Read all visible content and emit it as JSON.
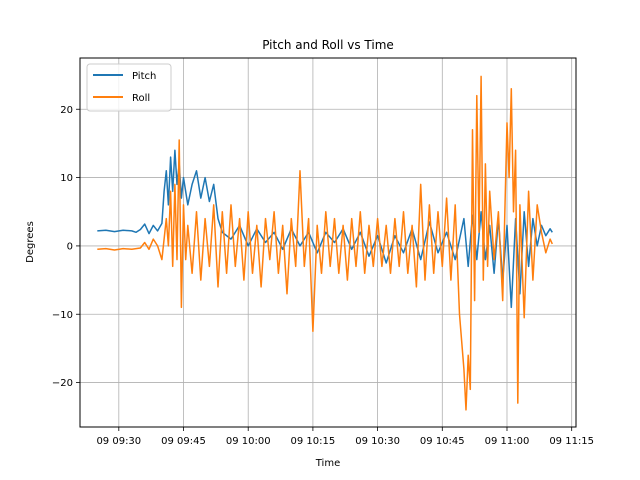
{
  "chart_data": {
    "type": "line",
    "title": "Pitch and Roll vs Time",
    "xlabel": "Time",
    "ylabel": "Degrees",
    "grid": true,
    "legend_position": "top-left",
    "xlim": [
      "09:21",
      "11:16"
    ],
    "ylim": [
      -26.5,
      27.5
    ],
    "x_ticks": [
      "09:30",
      "09:45",
      "10:00",
      "10:15",
      "10:30",
      "10:45",
      "11:00",
      "11:15"
    ],
    "x_tick_labels": [
      "09 09:30",
      "09 09:45",
      "09 10:00",
      "09 10:15",
      "09 10:30",
      "09 10:45",
      "09 11:00",
      "09 11:15"
    ],
    "y_ticks": [
      -20,
      -10,
      0,
      10,
      20
    ],
    "y_tick_labels": [
      "−20",
      "−10",
      "0",
      "10",
      "20"
    ],
    "series": [
      {
        "name": "Pitch",
        "color": "#1f77b4",
        "points": [
          [
            "09:25",
            2.2
          ],
          [
            "09:27",
            2.3
          ],
          [
            "09:29",
            2.1
          ],
          [
            "09:31",
            2.3
          ],
          [
            "09:33",
            2.2
          ],
          [
            "09:34",
            2.0
          ],
          [
            "09:35",
            2.4
          ],
          [
            "09:36",
            3.2
          ],
          [
            "09:37",
            1.8
          ],
          [
            "09:38",
            3.0
          ],
          [
            "09:39",
            2.2
          ],
          [
            "09:40",
            3.3
          ],
          [
            "09:40.5",
            8.0
          ],
          [
            "09:41",
            11.0
          ],
          [
            "09:41.5",
            6.0
          ],
          [
            "09:42",
            13.0
          ],
          [
            "09:42.5",
            8.0
          ],
          [
            "09:43",
            14.0
          ],
          [
            "09:43.5",
            9.0
          ],
          [
            "09:44",
            12.0
          ],
          [
            "09:44.5",
            7.0
          ],
          [
            "09:45",
            10.0
          ],
          [
            "09:46",
            6.0
          ],
          [
            "09:47",
            9.0
          ],
          [
            "09:48",
            11.0
          ],
          [
            "09:49",
            7.0
          ],
          [
            "09:50",
            10.0
          ],
          [
            "09:51",
            6.5
          ],
          [
            "09:52",
            9.0
          ],
          [
            "09:53",
            4.0
          ],
          [
            "09:54",
            2.0
          ],
          [
            "09:56",
            1.0
          ],
          [
            "09:58",
            3.0
          ],
          [
            "10:00",
            0.0
          ],
          [
            "10:02",
            2.5
          ],
          [
            "10:04",
            0.5
          ],
          [
            "10:06",
            2.0
          ],
          [
            "10:08",
            -0.5
          ],
          [
            "10:10",
            2.5
          ],
          [
            "10:12",
            0.0
          ],
          [
            "10:14",
            2.0
          ],
          [
            "10:16",
            -1.0
          ],
          [
            "10:18",
            2.0
          ],
          [
            "10:20",
            0.5
          ],
          [
            "10:22",
            2.5
          ],
          [
            "10:24",
            -0.5
          ],
          [
            "10:26",
            2.0
          ],
          [
            "10:28",
            -1.5
          ],
          [
            "10:30",
            1.5
          ],
          [
            "10:32",
            -2.5
          ],
          [
            "10:34",
            1.5
          ],
          [
            "10:36",
            -1.0
          ],
          [
            "10:38",
            2.5
          ],
          [
            "10:40",
            -2.0
          ],
          [
            "10:42",
            3.5
          ],
          [
            "10:44",
            -1.0
          ],
          [
            "10:46",
            2.0
          ],
          [
            "10:48",
            -2.0
          ],
          [
            "10:50",
            4.0
          ],
          [
            "10:51",
            -3.0
          ],
          [
            "10:52",
            4.5
          ],
          [
            "10:53",
            -2.0
          ],
          [
            "10:54",
            5.0
          ],
          [
            "10:55",
            -2.0
          ],
          [
            "10:56",
            3.0
          ],
          [
            "10:57",
            -4.0
          ],
          [
            "10:58",
            4.0
          ],
          [
            "10:59",
            -5.0
          ],
          [
            "11:00",
            3.0
          ],
          [
            "11:01",
            -9.0
          ],
          [
            "11:02",
            4.0
          ],
          [
            "11:03",
            -7.0
          ],
          [
            "11:04",
            5.0
          ],
          [
            "11:05",
            -3.0
          ],
          [
            "11:06",
            4.0
          ],
          [
            "11:07",
            0.0
          ],
          [
            "11:08",
            3.0
          ],
          [
            "11:09",
            1.5
          ],
          [
            "11:10",
            2.5
          ],
          [
            "11:10.5",
            2.0
          ]
        ]
      },
      {
        "name": "Roll",
        "color": "#ff7f0e",
        "points": [
          [
            "09:25",
            -0.5
          ],
          [
            "09:27",
            -0.4
          ],
          [
            "09:29",
            -0.6
          ],
          [
            "09:31",
            -0.4
          ],
          [
            "09:33",
            -0.5
          ],
          [
            "09:35",
            -0.3
          ],
          [
            "09:36",
            0.5
          ],
          [
            "09:37",
            -0.5
          ],
          [
            "09:38",
            1.0
          ],
          [
            "09:39",
            0.0
          ],
          [
            "09:40",
            -2.0
          ],
          [
            "09:41",
            4.0
          ],
          [
            "09:41.5",
            0.0
          ],
          [
            "09:42",
            8.0
          ],
          [
            "09:42.5",
            -3.0
          ],
          [
            "09:43",
            9.0
          ],
          [
            "09:43.5",
            -2.0
          ],
          [
            "09:44",
            15.5
          ],
          [
            "09:44.5",
            -9.0
          ],
          [
            "09:45",
            6.0
          ],
          [
            "09:45.5",
            -2.0
          ],
          [
            "09:46",
            3.0
          ],
          [
            "09:47",
            -4.0
          ],
          [
            "09:48",
            5.0
          ],
          [
            "09:49",
            -5.0
          ],
          [
            "09:50",
            4.0
          ],
          [
            "09:51",
            -3.0
          ],
          [
            "09:52",
            6.0
          ],
          [
            "09:53",
            -6.0
          ],
          [
            "09:54",
            5.0
          ],
          [
            "09:55",
            -4.0
          ],
          [
            "09:56",
            6.0
          ],
          [
            "09:57",
            -3.0
          ],
          [
            "09:58",
            4.0
          ],
          [
            "09:59",
            -5.0
          ],
          [
            "10:00",
            5.0
          ],
          [
            "10:01",
            -4.0
          ],
          [
            "10:02",
            3.0
          ],
          [
            "10:03",
            -6.0
          ],
          [
            "10:04",
            4.0
          ],
          [
            "10:05",
            -2.0
          ],
          [
            "10:06",
            5.0
          ],
          [
            "10:07",
            -4.0
          ],
          [
            "10:08",
            3.0
          ],
          [
            "10:09",
            -7.0
          ],
          [
            "10:10",
            4.0
          ],
          [
            "10:11",
            -3.0
          ],
          [
            "10:12",
            11.0
          ],
          [
            "10:13",
            -3.0
          ],
          [
            "10:14",
            4.0
          ],
          [
            "10:15",
            -12.5
          ],
          [
            "10:16",
            3.0
          ],
          [
            "10:17",
            -4.0
          ],
          [
            "10:18",
            5.0
          ],
          [
            "10:19",
            -3.0
          ],
          [
            "10:20",
            4.0
          ],
          [
            "10:21",
            -4.0
          ],
          [
            "10:22",
            3.0
          ],
          [
            "10:23",
            -5.0
          ],
          [
            "10:24",
            4.0
          ],
          [
            "10:25",
            -3.0
          ],
          [
            "10:26",
            5.0
          ],
          [
            "10:27",
            -4.0
          ],
          [
            "10:28",
            3.0
          ],
          [
            "10:29",
            -3.0
          ],
          [
            "10:30",
            4.0
          ],
          [
            "10:31",
            -3.0
          ],
          [
            "10:32",
            3.0
          ],
          [
            "10:33",
            -4.0
          ],
          [
            "10:34",
            4.0
          ],
          [
            "10:35",
            -3.0
          ],
          [
            "10:36",
            5.0
          ],
          [
            "10:37",
            -4.0
          ],
          [
            "10:38",
            3.0
          ],
          [
            "10:39",
            -6.0
          ],
          [
            "10:40",
            9.0
          ],
          [
            "10:41",
            -5.0
          ],
          [
            "10:42",
            6.0
          ],
          [
            "10:43",
            -4.0
          ],
          [
            "10:44",
            5.0
          ],
          [
            "10:45",
            -3.0
          ],
          [
            "10:46",
            7.0
          ],
          [
            "10:47",
            -5.0
          ],
          [
            "10:48",
            6.0
          ],
          [
            "10:49",
            -10.0
          ],
          [
            "10:50",
            -18.0
          ],
          [
            "10:50.5",
            -24.0
          ],
          [
            "10:51",
            -16.0
          ],
          [
            "10:51.5",
            -21.0
          ],
          [
            "10:52",
            17.0
          ],
          [
            "10:52.5",
            -8.0
          ],
          [
            "10:53",
            22.0
          ],
          [
            "10:53.5",
            2.0
          ],
          [
            "10:54",
            24.8
          ],
          [
            "10:54.5",
            -5.0
          ],
          [
            "10:55",
            12.0
          ],
          [
            "10:55.5",
            -3.0
          ],
          [
            "10:56",
            8.0
          ],
          [
            "10:57",
            -2.0
          ],
          [
            "10:58",
            5.0
          ],
          [
            "10:59",
            -8.0
          ],
          [
            "11:00",
            18.0
          ],
          [
            "11:00.5",
            10.0
          ],
          [
            "11:01",
            23.0
          ],
          [
            "11:01.5",
            5.0
          ],
          [
            "11:02",
            14.0
          ],
          [
            "11:02.5",
            -23.0
          ],
          [
            "11:03",
            6.0
          ],
          [
            "11:04",
            -10.5
          ],
          [
            "11:05",
            8.0
          ],
          [
            "11:06",
            -5.0
          ],
          [
            "11:07",
            6.0
          ],
          [
            "11:08",
            2.0
          ],
          [
            "11:09",
            -1.0
          ],
          [
            "11:10",
            1.0
          ],
          [
            "11:10.5",
            0.3
          ]
        ]
      }
    ]
  }
}
